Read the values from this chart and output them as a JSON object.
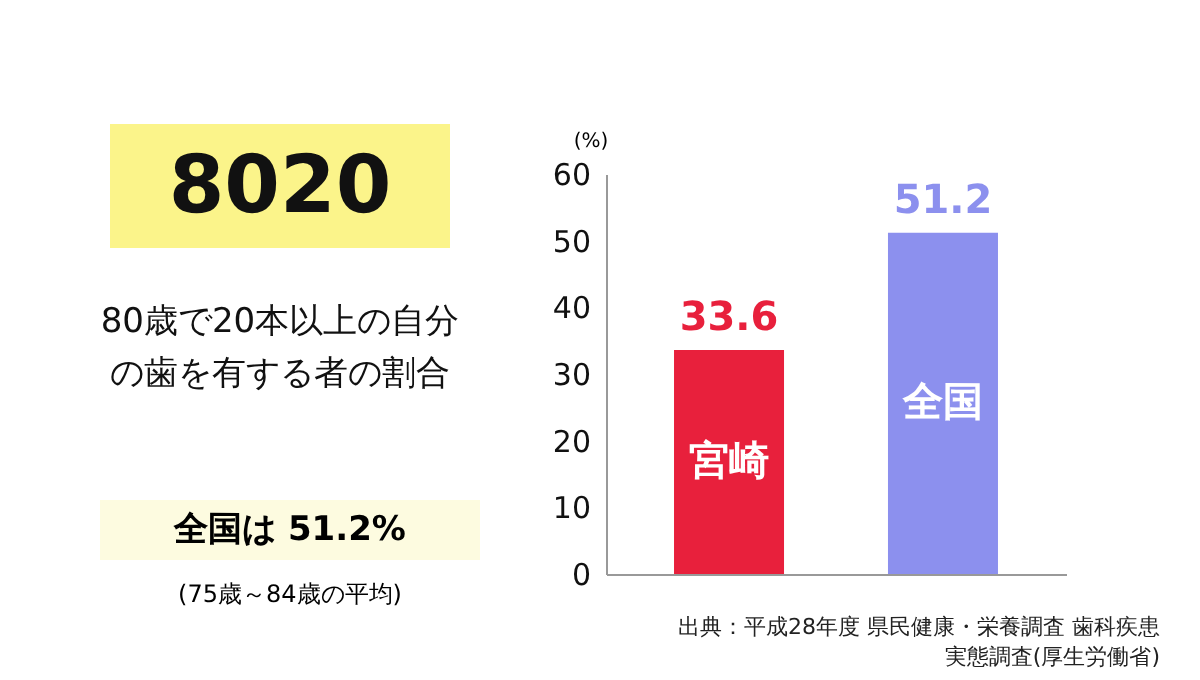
{
  "chart_data": {
    "type": "bar",
    "title": "8020",
    "subtitle": "80歳で20本以上の自分の歯を有する者の割合",
    "annotations": [
      "全国は 51.2%",
      "(75歳～84歳の平均)",
      "出典：平成28年度 県民健康・栄養調査 歯科疾患実態調査(厚生労働省)"
    ],
    "categories": [
      "宮崎",
      "全国"
    ],
    "values": [
      33.6,
      51.2
    ],
    "colors": [
      "#e8203c",
      "#8c90ee"
    ],
    "ylabel": "(%)",
    "ylim": [
      0,
      60
    ],
    "yticks": [
      0,
      10,
      20,
      30,
      40,
      50,
      60
    ],
    "data_labels": true
  }
}
